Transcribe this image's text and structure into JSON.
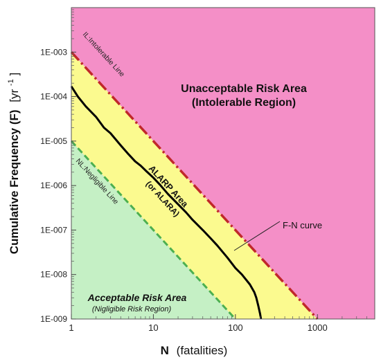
{
  "chart_data": {
    "type": "line",
    "title": "",
    "xlabel_bold": "N",
    "xlabel_rest": "(fatalities)",
    "ylabel_main": "Cumulative Frequency (F)",
    "ylabel_unit_prefix": "[yr",
    "ylabel_unit_exp": "-1",
    "ylabel_unit_suffix": "]",
    "xscale": "log",
    "yscale": "log",
    "xlim": [
      1,
      5000
    ],
    "ylim": [
      1e-09,
      0.01
    ],
    "x_ticks": [
      1,
      10,
      100,
      1000
    ],
    "x_tick_labels": [
      "1",
      "10",
      "100",
      "1000"
    ],
    "y_ticks": [
      1e-09,
      1e-08,
      1e-07,
      1e-06,
      1e-05,
      0.0001,
      0.001
    ],
    "y_tick_labels": [
      "1E-009",
      "1E-008",
      "1E-007",
      "1E-006",
      "1E-005",
      "1E-004",
      "1E-003"
    ],
    "series": [
      {
        "name": "IL:Intolerable Line",
        "color": "#c0282a",
        "style": "dash-dot",
        "x": [
          1,
          1000
        ],
        "y": [
          0.001,
          1e-09
        ]
      },
      {
        "name": "NL:Negligible Line",
        "color": "#4caf50",
        "style": "dashed",
        "x": [
          1,
          100
        ],
        "y": [
          1e-05,
          1e-09
        ]
      },
      {
        "name": "F-N curve",
        "color": "#000000",
        "style": "solid",
        "x": [
          1,
          1.2,
          1.5,
          2,
          2.5,
          3,
          4,
          5,
          6,
          7,
          8,
          10,
          12,
          15,
          20,
          25,
          30,
          40,
          50,
          60,
          70,
          80,
          100,
          120,
          150,
          170,
          180,
          190,
          200,
          205
        ],
        "y": [
          0.00017,
          0.0001,
          6e-05,
          3.5e-05,
          2e-05,
          1.5e-05,
          8e-06,
          5e-06,
          3.5e-06,
          2.8e-06,
          2.2e-06,
          1.5e-06,
          1.05e-06,
          6.5e-07,
          3.8e-07,
          2.5e-07,
          1.7e-07,
          1e-07,
          6.5e-08,
          4.5e-08,
          3.2e-08,
          2.4e-08,
          1.4e-08,
          1e-08,
          6e-09,
          4e-09,
          3e-09,
          2e-09,
          1.3e-09,
          1e-09
        ]
      }
    ],
    "regions": [
      {
        "label": "Unacceptable Risk Area",
        "sublabel": "(Intolerable Region)",
        "color": "#f48fc7"
      },
      {
        "label": "ALARP Area",
        "sublabel": "(or ALARA)",
        "color": "#fbfa8f"
      },
      {
        "label": "Acceptable Risk Area",
        "sublabel": "(Nigligible Risk Region)",
        "color": "#c5f0c5"
      }
    ],
    "annotations": [
      {
        "text": "F-N curve",
        "points_to_series": "F-N curve"
      }
    ],
    "grid": false
  }
}
